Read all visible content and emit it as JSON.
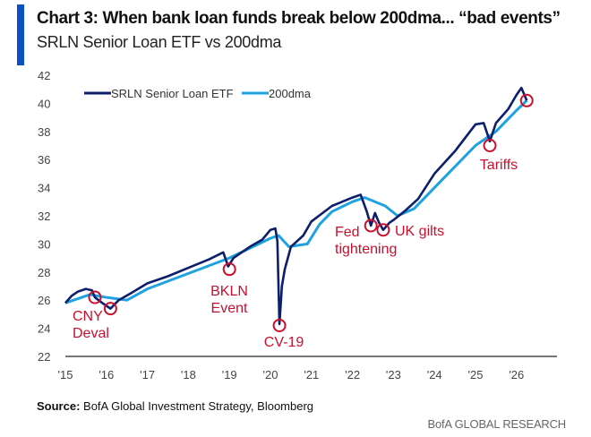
{
  "chart_data": {
    "type": "line",
    "title": "Chart 3: When bank loan funds break below 200dma... “bad events”",
    "subtitle": "SRLN Senior Loan ETF vs 200dma",
    "xlabel": "",
    "ylabel": "",
    "ylim": [
      22,
      42
    ],
    "xlim": [
      2015,
      2027
    ],
    "yticks": [
      22,
      24,
      26,
      28,
      30,
      32,
      34,
      36,
      38,
      40,
      42
    ],
    "xticks": [
      {
        "v": 2015,
        "label": "'15"
      },
      {
        "v": 2016,
        "label": "'16"
      },
      {
        "v": 2017,
        "label": "'17"
      },
      {
        "v": 2018,
        "label": "'18"
      },
      {
        "v": 2019,
        "label": "'19"
      },
      {
        "v": 2020,
        "label": "'20"
      },
      {
        "v": 2021,
        "label": "'21"
      },
      {
        "v": 2022,
        "label": "'22"
      },
      {
        "v": 2023,
        "label": "'23"
      },
      {
        "v": 2024,
        "label": "'24"
      },
      {
        "v": 2025,
        "label": "'25"
      },
      {
        "v": 2026,
        "label": "'26"
      }
    ],
    "legend_position": "top-left",
    "series": [
      {
        "name": "SRLN Senior Loan ETF",
        "color": "#0d1f6b",
        "points": [
          [
            2015.0,
            25.8
          ],
          [
            2015.15,
            26.3
          ],
          [
            2015.3,
            26.6
          ],
          [
            2015.5,
            26.8
          ],
          [
            2015.65,
            26.7
          ],
          [
            2015.72,
            26.2
          ],
          [
            2015.9,
            25.8
          ],
          [
            2016.1,
            25.4
          ],
          [
            2016.3,
            26.0
          ],
          [
            2016.6,
            26.5
          ],
          [
            2017.0,
            27.2
          ],
          [
            2017.5,
            27.7
          ],
          [
            2018.0,
            28.3
          ],
          [
            2018.5,
            28.9
          ],
          [
            2018.85,
            29.4
          ],
          [
            2018.97,
            28.4
          ],
          [
            2019.1,
            29.0
          ],
          [
            2019.5,
            29.8
          ],
          [
            2019.8,
            30.3
          ],
          [
            2020.0,
            31.0
          ],
          [
            2020.12,
            31.1
          ],
          [
            2020.17,
            30.2
          ],
          [
            2020.22,
            24.3
          ],
          [
            2020.28,
            27.0
          ],
          [
            2020.35,
            28.2
          ],
          [
            2020.5,
            29.8
          ],
          [
            2020.8,
            30.6
          ],
          [
            2021.0,
            31.6
          ],
          [
            2021.5,
            32.7
          ],
          [
            2022.0,
            33.3
          ],
          [
            2022.2,
            33.5
          ],
          [
            2022.35,
            32.3
          ],
          [
            2022.45,
            31.3
          ],
          [
            2022.55,
            32.2
          ],
          [
            2022.65,
            31.5
          ],
          [
            2022.75,
            31.0
          ],
          [
            2022.9,
            31.5
          ],
          [
            2023.0,
            31.7
          ],
          [
            2023.3,
            32.4
          ],
          [
            2023.6,
            33.2
          ],
          [
            2024.0,
            35.0
          ],
          [
            2024.5,
            36.6
          ],
          [
            2025.0,
            38.5
          ],
          [
            2025.2,
            38.6
          ],
          [
            2025.35,
            37.3
          ],
          [
            2025.5,
            38.6
          ],
          [
            2025.8,
            39.6
          ],
          [
            2026.0,
            40.6
          ],
          [
            2026.12,
            41.1
          ],
          [
            2026.25,
            40.2
          ]
        ]
      },
      {
        "name": "200dma",
        "color": "#1ea2e0",
        "points": [
          [
            2015.0,
            25.8
          ],
          [
            2015.6,
            26.4
          ],
          [
            2016.0,
            26.2
          ],
          [
            2016.5,
            26.0
          ],
          [
            2017.0,
            26.8
          ],
          [
            2018.0,
            27.9
          ],
          [
            2019.0,
            29.0
          ],
          [
            2020.0,
            30.4
          ],
          [
            2020.2,
            30.6
          ],
          [
            2020.45,
            29.8
          ],
          [
            2020.9,
            30.0
          ],
          [
            2021.2,
            31.4
          ],
          [
            2021.5,
            32.3
          ],
          [
            2022.0,
            33.0
          ],
          [
            2022.3,
            33.3
          ],
          [
            2022.8,
            32.7
          ],
          [
            2023.1,
            32.0
          ],
          [
            2023.5,
            32.5
          ],
          [
            2024.0,
            34.0
          ],
          [
            2024.5,
            35.5
          ],
          [
            2025.0,
            37.0
          ],
          [
            2025.5,
            38.0
          ],
          [
            2026.0,
            39.5
          ],
          [
            2026.25,
            40.2
          ]
        ]
      }
    ],
    "annotations": [
      {
        "label": [
          "CNY",
          "Deval"
        ],
        "x": 2015.72,
        "y": 26.2
      },
      {
        "label": [],
        "x": 2016.1,
        "y": 25.4
      },
      {
        "label": [
          "BKLN",
          "Event"
        ],
        "x": 2019.0,
        "y": 28.2
      },
      {
        "label": [
          "CV-19"
        ],
        "x": 2020.22,
        "y": 24.2
      },
      {
        "label": [
          "Fed",
          "tightening"
        ],
        "x": 2022.45,
        "y": 31.3
      },
      {
        "label": [
          "UK gilts"
        ],
        "x": 2022.75,
        "y": 31.0
      },
      {
        "label": [
          "Tariffs"
        ],
        "x": 2025.35,
        "y": 37.0
      },
      {
        "label": [],
        "x": 2026.25,
        "y": 40.2
      }
    ],
    "annotation_color": "#c8102e"
  },
  "source_label": "Source:",
  "source_text": " BofA Global Investment Strategy, Bloomberg",
  "brand": "BofA GLOBAL RESEARCH"
}
